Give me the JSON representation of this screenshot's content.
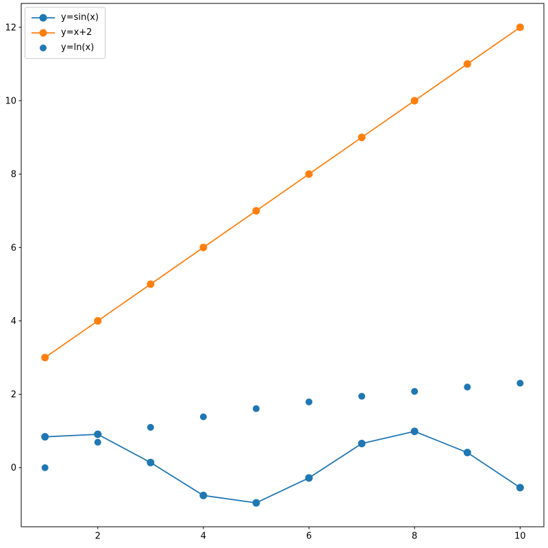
{
  "chart_data": {
    "type": "line",
    "x": [
      1,
      2,
      3,
      4,
      5,
      6,
      7,
      8,
      9,
      10
    ],
    "series": [
      {
        "name": "y=sin(x)",
        "type": "line",
        "color": "#1f77b4",
        "values": [
          0.841,
          0.909,
          0.141,
          -0.757,
          -0.959,
          -0.279,
          0.657,
          0.989,
          0.412,
          -0.544
        ]
      },
      {
        "name": "y=x+2",
        "type": "line",
        "color": "#ff7f0e",
        "values": [
          3,
          4,
          5,
          6,
          7,
          8,
          9,
          10,
          11,
          12
        ]
      },
      {
        "name": "y=ln(x)",
        "type": "scatter",
        "color": "#1f77b4",
        "values": [
          0,
          0.693,
          1.099,
          1.386,
          1.609,
          1.792,
          1.946,
          2.079,
          2.197,
          2.303
        ]
      }
    ],
    "title": "",
    "xlabel": "",
    "ylabel": "",
    "xticks": [
      2,
      4,
      6,
      8,
      10
    ],
    "yticks": [
      0,
      2,
      4,
      6,
      8,
      10,
      12
    ],
    "xlim": [
      0.55,
      10.45
    ],
    "ylim": [
      -1.61,
      12.65
    ],
    "grid": false,
    "legend_position": "upper left",
    "axis_color": "#000000",
    "tick_label_color": "#000000",
    "legend_border_color": "#cccccc",
    "background": "#ffffff"
  }
}
